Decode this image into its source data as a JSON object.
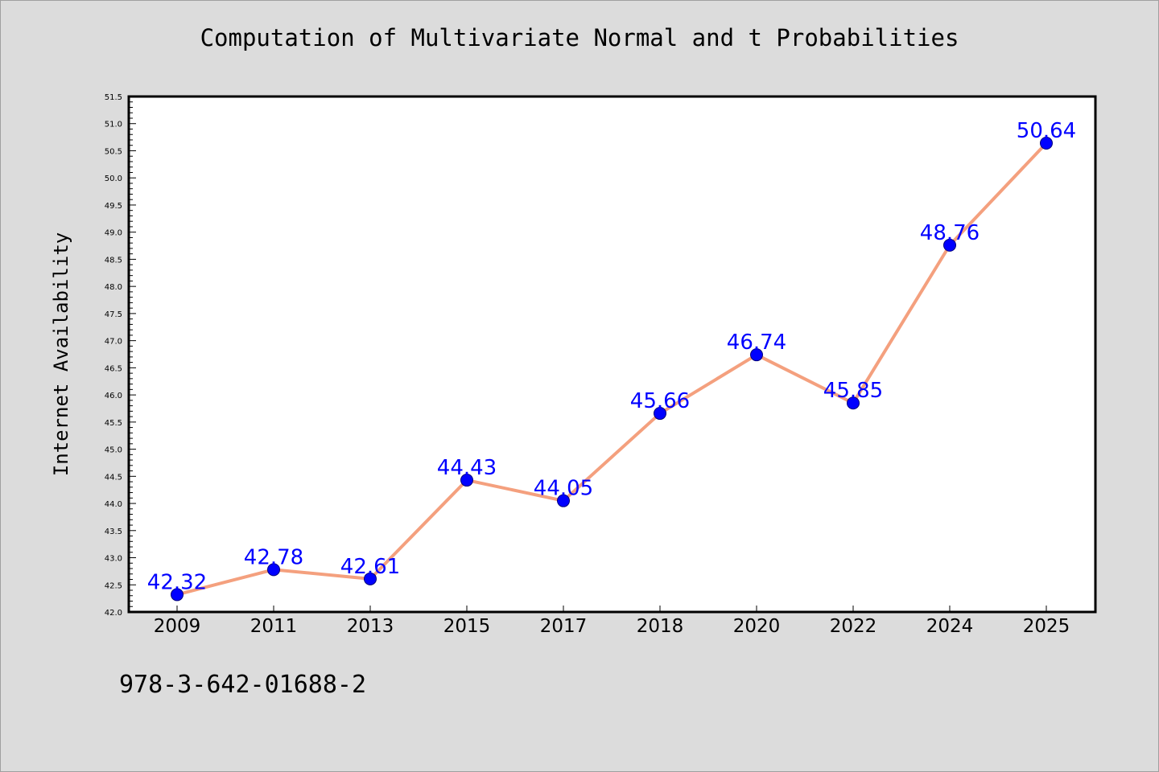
{
  "chart_data": {
    "type": "line",
    "title": "Computation of Multivariate Normal and t Probabilities",
    "xlabel": "",
    "ylabel": "Internet Availability",
    "categories": [
      "2009",
      "2011",
      "2013",
      "2015",
      "2017",
      "2018",
      "2020",
      "2022",
      "2024",
      "2025"
    ],
    "series": [
      {
        "values": [
          42.32,
          42.78,
          42.61,
          44.43,
          44.05,
          45.66,
          46.74,
          45.85,
          48.76,
          50.64
        ],
        "data_labels": [
          "42.32",
          "42.78",
          "42.61",
          "44.43",
          "44.05",
          "45.66",
          "46.74",
          "45.85",
          "48.76",
          "50.64"
        ],
        "line_color": "#f4a07e",
        "marker_color": "#0000ff"
      }
    ],
    "ylim": [
      42.0,
      51.5
    ],
    "yticks": [
      "42.0",
      "42.5",
      "43.0",
      "43.5",
      "44.0",
      "44.5",
      "45.0",
      "45.5",
      "46.0",
      "46.5",
      "47.0",
      "47.5",
      "48.0",
      "48.5",
      "49.0",
      "49.5",
      "50.0",
      "50.5",
      "51.0",
      "51.5"
    ],
    "grid": false,
    "legend": "none"
  },
  "footer_text": "978-3-642-01688-2",
  "colors": {
    "background": "#dcdcdc",
    "plot_area": "#ffffff",
    "line": "#f4a07e",
    "marker": "#0000ff",
    "data_label": "#0000ff"
  }
}
